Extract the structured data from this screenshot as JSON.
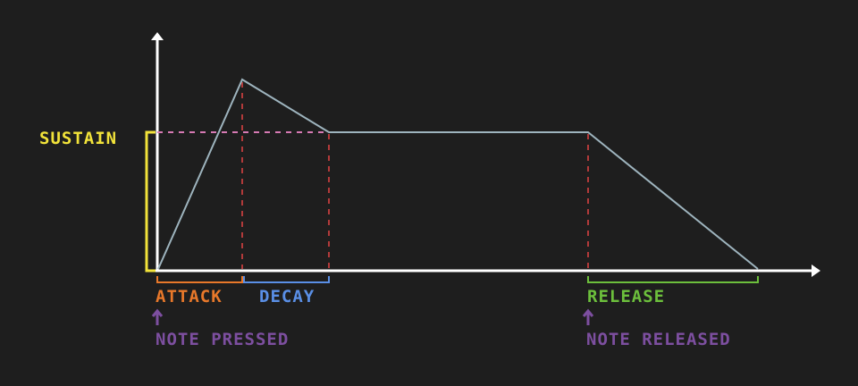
{
  "labels": {
    "sustain": "SUSTAIN",
    "attack": "ATTACK",
    "decay": "DECAY",
    "release": "RELEASE",
    "note_pressed": "NOTE PRESSED",
    "note_released": "NOTE RELEASED"
  },
  "colors": {
    "background": "#1e1e1e",
    "axes": "#ffffff",
    "envelope": "#9eb4be",
    "guide": "#b23a3a",
    "sustain_guide": "#d77ab4",
    "sustain": "#f2e33a",
    "attack": "#e8782a",
    "decay": "#5a8fe6",
    "release": "#6cbf3c",
    "note_marker": "#7d4fa0"
  },
  "icons": {
    "note_pressed_marker": "up-arrow-icon",
    "note_released_marker": "up-arrow-icon"
  }
}
